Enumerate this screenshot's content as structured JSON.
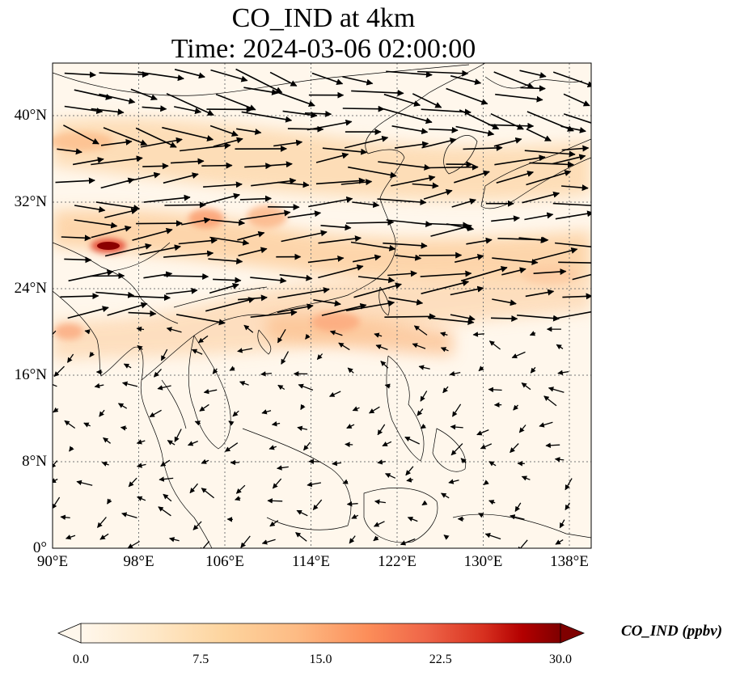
{
  "title": {
    "line1": "CO_IND at 4km",
    "line2": "Time: 2024-03-06 02:00:00"
  },
  "axes": {
    "lon_ticks": [
      "90°E",
      "98°E",
      "106°E",
      "114°E",
      "122°E",
      "130°E",
      "138°E"
    ],
    "lat_ticks": [
      "0°",
      "8°N",
      "16°N",
      "24°N",
      "32°N",
      "40°N"
    ],
    "lon_range": [
      90,
      140
    ],
    "lat_range": [
      0,
      45
    ]
  },
  "colorbar": {
    "label": "CO_IND (ppbv)",
    "ticks": [
      "0.0",
      "7.5",
      "15.0",
      "22.5",
      "30.0"
    ],
    "range": [
      0,
      30
    ],
    "colormap": "OrRd",
    "extend": "both"
  },
  "colors": {
    "gridline": "#777777",
    "coast": "#000000",
    "arrow": "#000000",
    "low": "#fff7ec",
    "mid": "#fdbb84",
    "high": "#7f0000"
  }
}
